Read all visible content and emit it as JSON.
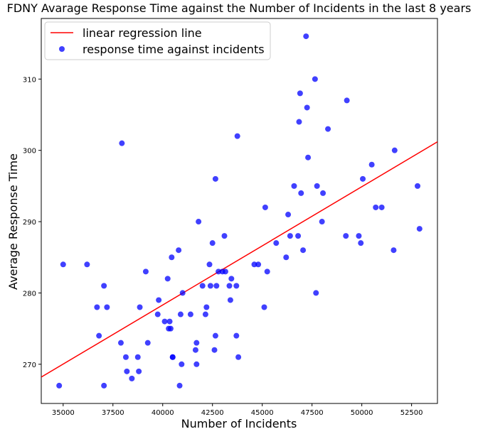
{
  "chart_data": {
    "type": "scatter",
    "title": "FDNY Avarage Response Time against the Number of Incidents in the last 8 years",
    "xlabel": "Number of Incidents",
    "ylabel": "Average Response Time",
    "xlim": [
      33900,
      53800
    ],
    "ylim": [
      264.5,
      318.5
    ],
    "x_ticks": [
      35000,
      37500,
      40000,
      42500,
      45000,
      47500,
      50000,
      52500
    ],
    "x_tick_labels": [
      "35000",
      "37500",
      "40000",
      "42500",
      "45000",
      "47500",
      "50000",
      "52500"
    ],
    "y_ticks": [
      270,
      280,
      290,
      300,
      310
    ],
    "y_tick_labels": [
      "270",
      "280",
      "290",
      "300",
      "310"
    ],
    "grid": false,
    "legend_position": "top-left",
    "colors": {
      "line": "#ff0000",
      "points": "#0000ff"
    },
    "series": [
      {
        "name": "linear regression line",
        "kind": "line",
        "x": [
          33900,
          53800
        ],
        "y": [
          268.2,
          301.2
        ]
      },
      {
        "name": "response time against incidents",
        "kind": "scatter",
        "x": [
          34800,
          35000,
          36200,
          36700,
          36800,
          37050,
          37050,
          37200,
          37900,
          37950,
          38150,
          38200,
          38450,
          38750,
          38800,
          38850,
          39150,
          39250,
          39750,
          39800,
          40100,
          40250,
          40300,
          40350,
          40400,
          40450,
          40500,
          40500,
          40800,
          40850,
          40900,
          40950,
          41000,
          41400,
          41650,
          41700,
          41700,
          41800,
          42000,
          42150,
          42200,
          42350,
          42400,
          42500,
          42600,
          42650,
          42650,
          42700,
          42800,
          43000,
          43100,
          43150,
          43350,
          43400,
          43450,
          43700,
          43700,
          43750,
          43800,
          44600,
          44800,
          45100,
          45150,
          45250,
          45700,
          46200,
          46300,
          46400,
          46600,
          46800,
          46850,
          46900,
          46950,
          47050,
          47200,
          47250,
          47300,
          47650,
          47700,
          47750,
          48000,
          48050,
          48300,
          49200,
          49250,
          49850,
          49950,
          50050,
          50500,
          50700,
          51000,
          51600,
          51650,
          52800,
          52900
        ],
        "y": [
          267,
          284,
          284,
          278,
          274,
          267,
          281,
          278,
          273,
          301,
          271,
          269,
          268,
          271,
          269,
          278,
          283,
          273,
          277,
          279,
          276,
          282,
          275,
          276,
          275,
          285,
          271,
          271,
          286,
          267,
          277,
          270,
          280,
          277,
          272,
          270,
          273,
          290,
          281,
          277,
          278,
          284,
          281,
          287,
          272,
          274,
          296,
          281,
          283,
          283,
          288,
          283,
          281,
          279,
          282,
          274,
          281,
          302,
          271,
          284,
          284,
          278,
          292,
          283,
          287,
          285,
          291,
          288,
          295,
          288,
          304,
          308,
          294,
          286,
          316,
          306,
          299,
          310,
          280,
          295,
          290,
          294,
          303,
          288,
          307,
          288,
          287,
          296,
          298,
          292,
          292,
          286,
          300,
          295,
          289
        ]
      }
    ]
  }
}
